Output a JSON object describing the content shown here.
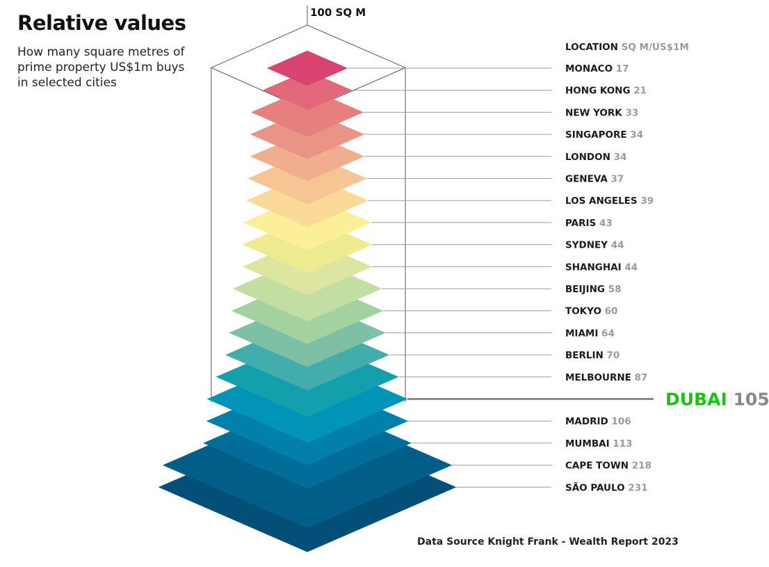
{
  "header": {
    "title": "Relative values",
    "subtitle": "How many square metres of prime property US$1m buys in selected cities"
  },
  "scale_label": "100 SQ M",
  "legend_header": {
    "location": "LOCATION",
    "unit": "SQ M/US$1M"
  },
  "source": "Data Source Knight Frank - Wealth Report 2023",
  "colors": {
    "label_text": "#1a1a1a",
    "value_text": "#9a9a9a",
    "leader_line": "#999999",
    "highlight_text": "#18c40f",
    "highlight_value": "#888888",
    "highlight_line": "#8a8a8a"
  },
  "chart_data": {
    "type": "bar",
    "title": "Relative values",
    "subtitle": "How many square metres of prime property US$1m buys in selected cities",
    "ylabel": "SQ M/US$1M",
    "reference": {
      "label": "100 SQ M",
      "value": 100
    },
    "highlight": "DUBAI",
    "series": [
      {
        "city": "MONACO",
        "value": 17,
        "color": "#d9436f"
      },
      {
        "city": "HONG KONG",
        "value": 21,
        "color": "#e2677b"
      },
      {
        "city": "NEW YORK",
        "value": 33,
        "color": "#e5807f"
      },
      {
        "city": "SINGAPORE",
        "value": 34,
        "color": "#ea9486"
      },
      {
        "city": "LONDON",
        "value": 34,
        "color": "#f0ae8f"
      },
      {
        "city": "GENEVA",
        "value": 37,
        "color": "#f7c594"
      },
      {
        "city": "LOS ANGELES",
        "value": 39,
        "color": "#fbd999"
      },
      {
        "city": "PARIS",
        "value": 43,
        "color": "#fbef98"
      },
      {
        "city": "SYDNEY",
        "value": 44,
        "color": "#eeea90"
      },
      {
        "city": "SHANGHAI",
        "value": 44,
        "color": "#dde6a0"
      },
      {
        "city": "BEIJING",
        "value": 58,
        "color": "#c3dea2"
      },
      {
        "city": "TOKYO",
        "value": 60,
        "color": "#a3d1a0"
      },
      {
        "city": "MIAMI",
        "value": 64,
        "color": "#7dc0a5"
      },
      {
        "city": "BERLIN",
        "value": 70,
        "color": "#43adac"
      },
      {
        "city": "MELBOURNE",
        "value": 87,
        "color": "#13a0ac"
      },
      {
        "city": "DUBAI",
        "value": 105,
        "color": "#0095b6"
      },
      {
        "city": "MADRID",
        "value": 106,
        "color": "#0080aa"
      },
      {
        "city": "MUMBAI",
        "value": 113,
        "color": "#006e98"
      },
      {
        "city": "CAPE TOWN",
        "value": 218,
        "color": "#005e88"
      },
      {
        "city": "SÃO PAULO",
        "value": 231,
        "color": "#034f78"
      }
    ]
  }
}
